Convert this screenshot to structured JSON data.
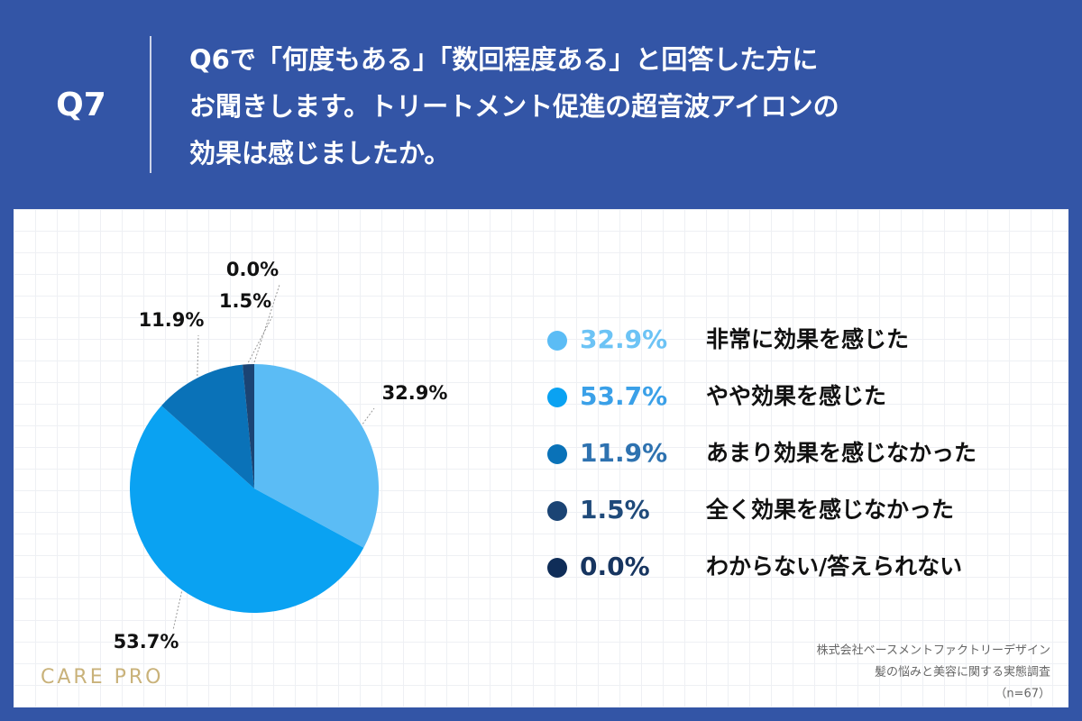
{
  "chart_data": {
    "type": "pie",
    "question_number": "Q7",
    "title": [
      "Q6で「何度もある」「数回程度ある」と回答した方に",
      "お聞きします。トリートメント促進の超音波アイロンの",
      "効果は感じましたか。"
    ],
    "categories": [
      "非常に効果を感じた",
      "やや効果を感じた",
      "あまり効果を感じなかった",
      "全く効果を感じなかった",
      "わからない/答えられない"
    ],
    "values": [
      32.9,
      53.7,
      11.9,
      1.5,
      0.0
    ],
    "value_labels": [
      "32.9%",
      "53.7%",
      "11.9%",
      "1.5%",
      "0.0%"
    ],
    "colors": [
      "#5bbcf5",
      "#0aa2f2",
      "#0a72b8",
      "#1b4474",
      "#0f2d58"
    ],
    "label_colors": [
      "#6cc3f5",
      "#3aa0e8",
      "#2e72b0",
      "#1f4a7a",
      "#173560"
    ],
    "source": [
      "株式会社ベースメントファクトリーデザイン",
      "髪の悩みと美容に関する実態調査",
      "（n=67）"
    ],
    "brand": "CARE PRO"
  }
}
